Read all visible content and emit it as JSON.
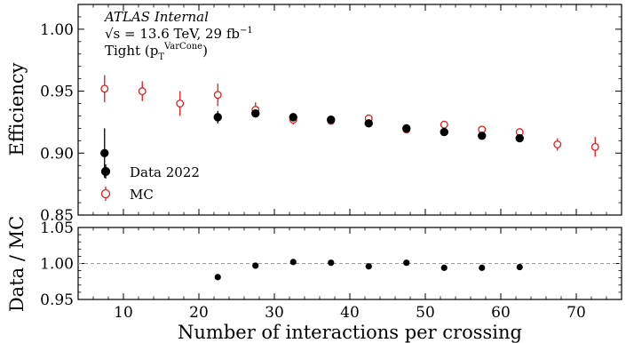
{
  "chart_data": [
    {
      "type": "scatter",
      "panel": "main",
      "annotation": {
        "experiment": "ATLAS Internal",
        "energy_prefix": "√s = 13.6 TeV, 29 fb",
        "energy_sup": "−1",
        "selection_prefix": "Tight (p",
        "selection_sub": "T",
        "selection_sup": "VarCone",
        "selection_suffix": ")"
      },
      "xlabel": "Number of interactions per crossing",
      "ylabel": "Efficiency",
      "xlim": [
        4,
        76
      ],
      "ylim": [
        0.85,
        1.02
      ],
      "x_ticks": [
        10,
        20,
        30,
        40,
        50,
        60,
        70
      ],
      "y_ticks": [
        0.85,
        0.9,
        0.95,
        1.0
      ],
      "y_tick_labels": [
        "0.85",
        "0.90",
        "0.95",
        "1.00"
      ],
      "legend": {
        "placement": "lower-left",
        "entries": [
          "Data 2022",
          "MC"
        ]
      },
      "series": [
        {
          "name": "Data 2022",
          "color": "#000000",
          "marker": "filled-circle",
          "points": [
            {
              "x": 7.5,
              "y": 0.9,
              "err": 0.02
            },
            {
              "x": 22.5,
              "y": 0.929,
              "err": 0.005
            },
            {
              "x": 27.5,
              "y": 0.932,
              "err": 0.003
            },
            {
              "x": 32.5,
              "y": 0.929,
              "err": 0.002
            },
            {
              "x": 37.5,
              "y": 0.927,
              "err": 0.002
            },
            {
              "x": 42.5,
              "y": 0.924,
              "err": 0.002
            },
            {
              "x": 47.5,
              "y": 0.92,
              "err": 0.002
            },
            {
              "x": 52.5,
              "y": 0.917,
              "err": 0.002
            },
            {
              "x": 57.5,
              "y": 0.914,
              "err": 0.002
            },
            {
              "x": 62.5,
              "y": 0.912,
              "err": 0.002
            }
          ]
        },
        {
          "name": "MC",
          "color": "#e31a1c",
          "marker": "open-circle",
          "points": [
            {
              "x": 7.5,
              "y": 0.952,
              "err": 0.011
            },
            {
              "x": 12.5,
              "y": 0.95,
              "err": 0.008
            },
            {
              "x": 17.5,
              "y": 0.94,
              "err": 0.01
            },
            {
              "x": 22.5,
              "y": 0.947,
              "err": 0.009
            },
            {
              "x": 27.5,
              "y": 0.935,
              "err": 0.006
            },
            {
              "x": 32.5,
              "y": 0.927,
              "err": 0.004
            },
            {
              "x": 37.5,
              "y": 0.926,
              "err": 0.003
            },
            {
              "x": 42.5,
              "y": 0.928,
              "err": 0.003
            },
            {
              "x": 47.5,
              "y": 0.919,
              "err": 0.003
            },
            {
              "x": 52.5,
              "y": 0.923,
              "err": 0.003
            },
            {
              "x": 57.5,
              "y": 0.919,
              "err": 0.003
            },
            {
              "x": 62.5,
              "y": 0.917,
              "err": 0.003
            },
            {
              "x": 67.5,
              "y": 0.907,
              "err": 0.005
            },
            {
              "x": 72.5,
              "y": 0.905,
              "err": 0.008
            }
          ]
        }
      ]
    },
    {
      "type": "scatter",
      "panel": "ratio",
      "xlabel": "Number of interactions per crossing",
      "ylabel": "Data / MC",
      "xlim": [
        4,
        76
      ],
      "ylim": [
        0.95,
        1.05
      ],
      "x_ticks": [
        10,
        20,
        30,
        40,
        50,
        60,
        70
      ],
      "x_tick_labels": [
        "10",
        "20",
        "30",
        "40",
        "50",
        "60",
        "70"
      ],
      "y_ticks": [
        0.95,
        1.0,
        1.05
      ],
      "y_tick_labels": [
        "0.95",
        "1.00",
        "1.05"
      ],
      "reference_line": 1.0,
      "reference_color": "#999999",
      "series": [
        {
          "name": "Data / MC",
          "color": "#000000",
          "marker": "filled-circle",
          "points": [
            {
              "x": 22.5,
              "y": 0.981
            },
            {
              "x": 27.5,
              "y": 0.997
            },
            {
              "x": 32.5,
              "y": 1.002
            },
            {
              "x": 37.5,
              "y": 1.001
            },
            {
              "x": 42.5,
              "y": 0.996
            },
            {
              "x": 47.5,
              "y": 1.001
            },
            {
              "x": 52.5,
              "y": 0.994
            },
            {
              "x": 57.5,
              "y": 0.994
            },
            {
              "x": 62.5,
              "y": 0.995
            }
          ]
        }
      ]
    }
  ]
}
